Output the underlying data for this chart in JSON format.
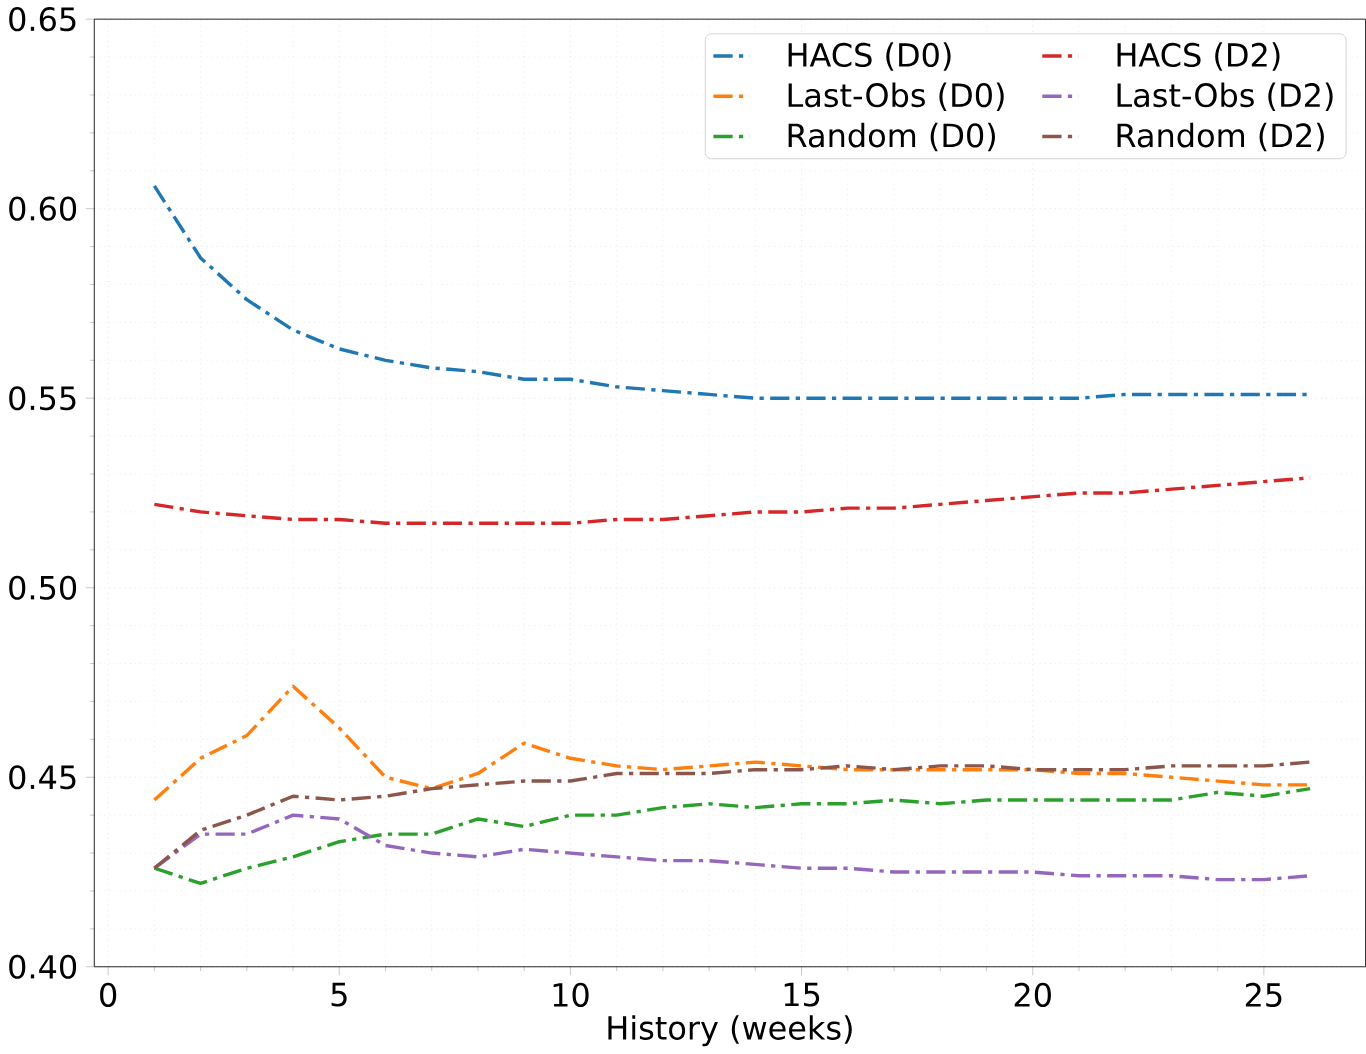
{
  "chart_data": {
    "type": "line",
    "xlabel": "History (weeks)",
    "x": [
      1,
      2,
      3,
      4,
      5,
      6,
      7,
      8,
      9,
      10,
      11,
      12,
      13,
      14,
      15,
      16,
      17,
      18,
      19,
      20,
      21,
      22,
      23,
      24,
      25,
      26
    ],
    "xlim": [
      -0.3,
      27.2
    ],
    "xticks": [
      0,
      5,
      10,
      15,
      20,
      25
    ],
    "ylim": [
      0.4,
      0.65
    ],
    "yticks": [
      {
        "value": 0.4,
        "label": "0.40"
      },
      {
        "value": 0.45,
        "label": "0.45"
      },
      {
        "value": 0.5,
        "label": "0.50"
      },
      {
        "value": 0.55,
        "label": "0.55"
      },
      {
        "value": 0.6,
        "label": "0.60"
      },
      {
        "value": 0.65,
        "label": "0.65"
      }
    ],
    "grid": true,
    "legend": "top right",
    "marker": "none",
    "line_style": "dashdot",
    "series": [
      {
        "name": "HACS (D0)",
        "color": "#1f77b4",
        "values": [
          0.606,
          0.587,
          0.576,
          0.568,
          0.563,
          0.56,
          0.558,
          0.557,
          0.555,
          0.555,
          0.553,
          0.552,
          0.551,
          0.55,
          0.55,
          0.55,
          0.55,
          0.55,
          0.55,
          0.55,
          0.55,
          0.551,
          0.551,
          0.551,
          0.551,
          0.551
        ]
      },
      {
        "name": "Last-Obs (D0)",
        "color": "#ff7f0e",
        "values": [
          0.444,
          0.455,
          0.461,
          0.474,
          0.463,
          0.45,
          0.447,
          0.451,
          0.459,
          0.455,
          0.453,
          0.452,
          0.453,
          0.454,
          0.453,
          0.452,
          0.452,
          0.452,
          0.452,
          0.452,
          0.451,
          0.451,
          0.45,
          0.449,
          0.448,
          0.448
        ]
      },
      {
        "name": "Random (D0)",
        "color": "#2ca02c",
        "values": [
          0.426,
          0.422,
          0.426,
          0.429,
          0.433,
          0.435,
          0.435,
          0.439,
          0.437,
          0.44,
          0.44,
          0.442,
          0.443,
          0.442,
          0.443,
          0.443,
          0.444,
          0.443,
          0.444,
          0.444,
          0.444,
          0.444,
          0.444,
          0.446,
          0.445,
          0.447
        ]
      },
      {
        "name": "HACS (D2)",
        "color": "#d62728",
        "values": [
          0.522,
          0.52,
          0.519,
          0.518,
          0.518,
          0.517,
          0.517,
          0.517,
          0.517,
          0.517,
          0.518,
          0.518,
          0.519,
          0.52,
          0.52,
          0.521,
          0.521,
          0.522,
          0.523,
          0.524,
          0.525,
          0.525,
          0.526,
          0.527,
          0.528,
          0.529
        ]
      },
      {
        "name": "Last-Obs (D2)",
        "color": "#9467bd",
        "values": [
          0.426,
          0.435,
          0.435,
          0.44,
          0.439,
          0.432,
          0.43,
          0.429,
          0.431,
          0.43,
          0.429,
          0.428,
          0.428,
          0.427,
          0.426,
          0.426,
          0.425,
          0.425,
          0.425,
          0.425,
          0.424,
          0.424,
          0.424,
          0.423,
          0.423,
          0.424
        ]
      },
      {
        "name": "Random (D2)",
        "color": "#8c564b",
        "values": [
          0.426,
          0.436,
          0.44,
          0.445,
          0.444,
          0.445,
          0.447,
          0.448,
          0.449,
          0.449,
          0.451,
          0.451,
          0.451,
          0.452,
          0.452,
          0.453,
          0.452,
          0.453,
          0.453,
          0.452,
          0.452,
          0.452,
          0.453,
          0.453,
          0.453,
          0.454
        ]
      }
    ]
  }
}
